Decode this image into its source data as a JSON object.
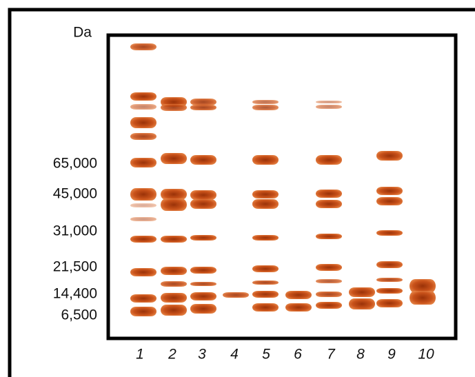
{
  "unit_label": "Da",
  "markers": [
    "65,000",
    "45,000",
    "31,000",
    "21,500",
    "14,400",
    "6,500"
  ],
  "lanes": [
    "1",
    "2",
    "3",
    "4",
    "5",
    "6",
    "7",
    "8",
    "9",
    "10"
  ]
}
